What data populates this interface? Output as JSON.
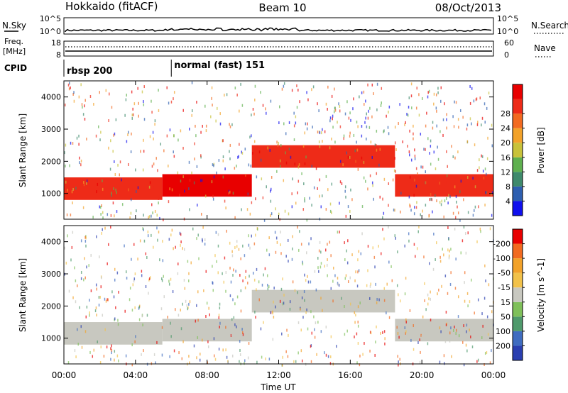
{
  "header": {
    "title": "Hokkaido (fitACF)",
    "beam": "Beam 10",
    "date": "08/Oct/2013"
  },
  "status_panels": {
    "nsky": {
      "label": "N.Sky",
      "right_label": "N.Search",
      "ticks": [
        "10^5",
        "10^0"
      ]
    },
    "freq": {
      "label_top": "Freq.",
      "label_bottom": "[MHz]",
      "left_ticks": [
        "18",
        "8"
      ],
      "right_label": "Nave",
      "right_ticks": [
        "60",
        "0"
      ]
    },
    "cpid": {
      "label": "CPID",
      "segments": [
        {
          "name": "rbsp 200",
          "start_hour": 0,
          "end_hour": 6
        },
        {
          "name": "normal (fast) 151",
          "start_hour": 6,
          "end_hour": 24
        }
      ]
    }
  },
  "chart_data": [
    {
      "type": "heatmap",
      "name": "power-panel",
      "ylabel": "Slant Range [km]",
      "xlabel": "",
      "y_ticks": [
        1000,
        2000,
        3000,
        4000
      ],
      "ylim": [
        200,
        4500
      ],
      "xlim_hours": [
        0,
        24
      ],
      "colorbar": {
        "label": "Power [dB]",
        "ticks": [
          4,
          8,
          12,
          16,
          20,
          24,
          28
        ],
        "colors": [
          "#1010ee",
          "#2e5fb0",
          "#3f8a6c",
          "#5fb04f",
          "#c8c23a",
          "#f2a22a",
          "#f26a20",
          "#ee2b18",
          "#e80000"
        ]
      },
      "echo_bands": [
        {
          "start_hour": 0.0,
          "end_hour": 5.5,
          "y_low": 800,
          "y_high": 1500,
          "color": "#ee2b18"
        },
        {
          "start_hour": 5.5,
          "end_hour": 10.5,
          "y_low": 900,
          "y_high": 1600,
          "color": "#e80000"
        },
        {
          "start_hour": 10.5,
          "end_hour": 18.5,
          "y_low": 1800,
          "y_high": 2500,
          "color": "#ee2b18"
        },
        {
          "start_hour": 18.5,
          "end_hour": 24.0,
          "y_low": 900,
          "y_high": 1600,
          "color": "#ee2b18"
        }
      ]
    },
    {
      "type": "heatmap",
      "name": "velocity-panel",
      "ylabel": "Slant Range [km]",
      "xlabel": "Time UT",
      "x_ticks": [
        "00:00",
        "04:00",
        "08:00",
        "12:00",
        "16:00",
        "20:00",
        "00:00"
      ],
      "y_ticks": [
        1000,
        2000,
        3000,
        4000
      ],
      "ylim": [
        200,
        4500
      ],
      "xlim_hours": [
        0,
        24
      ],
      "colorbar": {
        "label": "Velocity [m s^-1]",
        "ticks": [
          200,
          100,
          50,
          15,
          -15,
          -50,
          -100,
          -200
        ],
        "colors": [
          "#2a3fb0",
          "#3f6cc0",
          "#4f9a6c",
          "#7fc05a",
          "#c8c8c0",
          "#f2c24a",
          "#f2a22a",
          "#f26a20",
          "#e80000"
        ]
      },
      "echo_bands": [
        {
          "start_hour": 0.0,
          "end_hour": 5.5,
          "y_low": 800,
          "y_high": 1500,
          "color": "#c8c8c0"
        },
        {
          "start_hour": 5.5,
          "end_hour": 10.5,
          "y_low": 900,
          "y_high": 1600,
          "color": "#c8c8c0"
        },
        {
          "start_hour": 10.5,
          "end_hour": 18.5,
          "y_low": 1800,
          "y_high": 2500,
          "color": "#c8c8c0"
        },
        {
          "start_hour": 18.5,
          "end_hour": 24.0,
          "y_low": 900,
          "y_high": 1600,
          "color": "#c8c8c0"
        }
      ]
    }
  ]
}
